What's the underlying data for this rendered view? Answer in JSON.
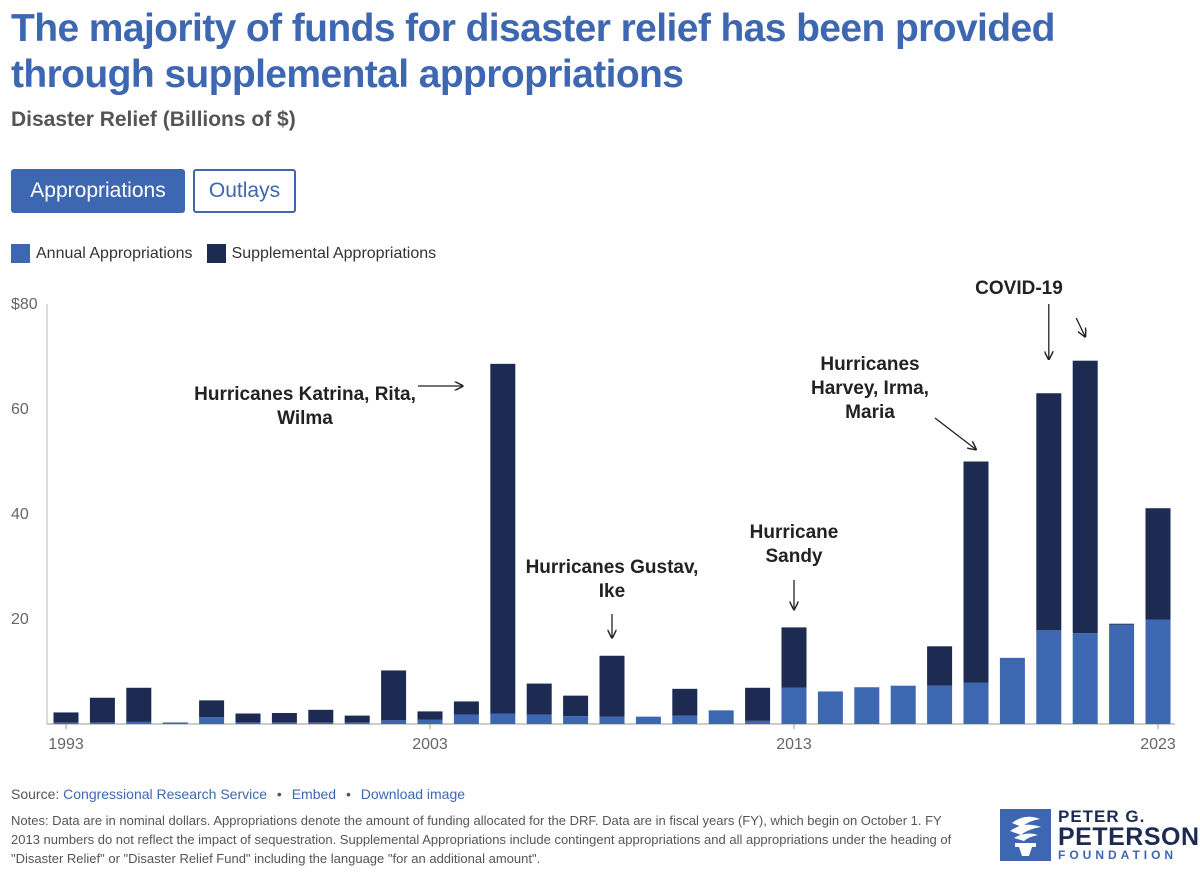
{
  "header": {
    "title": "The majority of funds for disaster relief has been provided through supplemental appropriations",
    "subtitle": "Disaster Relief (Billions of $)"
  },
  "tabs": [
    {
      "label": "Appropriations",
      "active": true
    },
    {
      "label": "Outlays",
      "active": false
    }
  ],
  "colors": {
    "annual": "#3d67b1",
    "supplemental": "#1d2a52",
    "accent": "#3d67b1"
  },
  "chart_data": {
    "type": "bar",
    "stacked": true,
    "title": "Disaster Relief (Billions of $)",
    "xlabel": "",
    "ylabel": "",
    "ylim": [
      0,
      80
    ],
    "yticks": [
      "20",
      "40",
      "60",
      "$80"
    ],
    "ytick_values": [
      20,
      40,
      60,
      80
    ],
    "xtick_labels": [
      {
        "label": "1993",
        "year": 1993
      },
      {
        "label": "2003",
        "year": 2003
      },
      {
        "label": "2013",
        "year": 2013
      },
      {
        "label": "2023",
        "year": 2023
      }
    ],
    "categories": [
      1993,
      1994,
      1995,
      1996,
      1997,
      1998,
      1999,
      2000,
      2001,
      2002,
      2003,
      2004,
      2005,
      2006,
      2007,
      2008,
      2009,
      2010,
      2011,
      2012,
      2013,
      2014,
      2015,
      2016,
      2017,
      2018,
      2019,
      2020,
      2021,
      2022,
      2023
    ],
    "series": [
      {
        "name": "Annual Appropriations",
        "values": [
          0.3,
          0.3,
          0.4,
          0.3,
          1.3,
          0.3,
          0.3,
          0.3,
          0.3,
          0.7,
          0.8,
          1.8,
          2.0,
          1.8,
          1.5,
          1.4,
          1.4,
          1.6,
          2.6,
          0.6,
          6.9,
          6.2,
          7.0,
          7.3,
          7.3,
          7.9,
          12.6,
          17.9,
          17.3,
          18.9,
          19.9
        ]
      },
      {
        "name": "Supplemental Appropriations",
        "values": [
          1.9,
          4.7,
          6.5,
          0.0,
          3.2,
          1.7,
          1.8,
          2.4,
          1.3,
          9.5,
          1.6,
          2.5,
          66.6,
          5.9,
          3.9,
          11.6,
          0.0,
          5.1,
          0.0,
          6.3,
          11.5,
          0.0,
          0.0,
          0.0,
          7.5,
          42.1,
          0.0,
          45.1,
          51.9,
          0.2,
          21.2
        ]
      }
    ],
    "annotations": [
      {
        "lines": [
          "Hurricanes Katrina, Rita,",
          "Wilma"
        ],
        "year": 2005
      },
      {
        "lines": [
          "Hurricanes Gustav,",
          "Ike"
        ],
        "year": 2008
      },
      {
        "lines": [
          "Hurricane",
          "Sandy"
        ],
        "year": 2013
      },
      {
        "lines": [
          "Hurricanes",
          "Harvey, Irma,",
          "Maria"
        ],
        "year": 2018
      },
      {
        "lines": [
          "COVID-19"
        ],
        "year": 2020
      }
    ]
  },
  "legend": [
    {
      "label": "Annual Appropriations",
      "color": "#3d67b1"
    },
    {
      "label": "Supplemental Appropriations",
      "color": "#1d2a52"
    }
  ],
  "footer": {
    "source_prefix": "Source:",
    "source_link": "Congressional Research Service",
    "embed": "Embed",
    "download": "Download image",
    "notes": "Notes: Data are in nominal dollars. Appropriations denote the amount of funding allocated for the DRF. Data are in fiscal years (FY), which begin on October 1. FY 2013 numbers do not reflect the impact of sequestration. Supplemental Appropriations include contingent appropriations and all appropriations under the heading of \"Disaster Relief\" or \"Disaster Relief Fund\" including the language \"for an additional amount\"."
  },
  "logo": {
    "line1": "PETER G.",
    "line2": "PETERSON",
    "line3": "FOUNDATION"
  }
}
